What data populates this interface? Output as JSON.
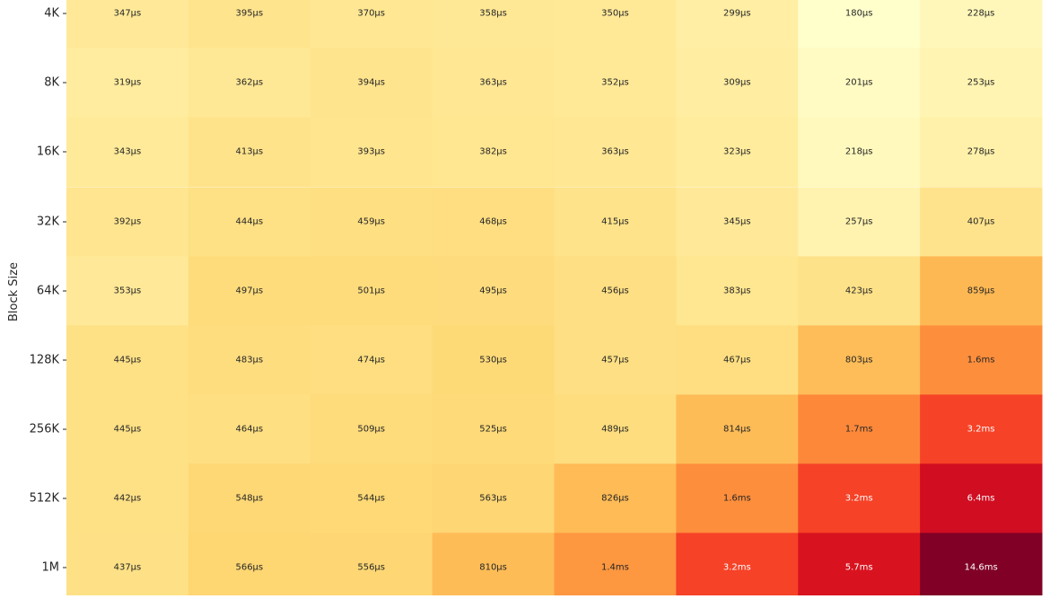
{
  "chart_data": {
    "type": "heatmap",
    "ylabel": "Block Size",
    "y_categories": [
      "4K",
      "8K",
      "16K",
      "32K",
      "64K",
      "128K",
      "256K",
      "512K",
      "1M"
    ],
    "columns": 8,
    "values_us": [
      [
        347,
        395,
        370,
        358,
        350,
        299,
        180,
        228
      ],
      [
        319,
        362,
        394,
        363,
        352,
        309,
        201,
        253
      ],
      [
        343,
        413,
        393,
        382,
        363,
        323,
        218,
        278
      ],
      [
        392,
        444,
        459,
        468,
        415,
        345,
        257,
        407
      ],
      [
        353,
        497,
        501,
        495,
        456,
        383,
        423,
        859
      ],
      [
        445,
        483,
        474,
        530,
        457,
        467,
        803,
        1600
      ],
      [
        445,
        464,
        509,
        525,
        489,
        814,
        1700,
        3200
      ],
      [
        442,
        548,
        544,
        563,
        826,
        1600,
        3200,
        6400
      ],
      [
        437,
        566,
        556,
        810,
        1400,
        3200,
        5700,
        14600
      ]
    ],
    "cell_labels": [
      [
        "347µs",
        "395µs",
        "370µs",
        "358µs",
        "350µs",
        "299µs",
        "180µs",
        "228µs"
      ],
      [
        "319µs",
        "362µs",
        "394µs",
        "363µs",
        "352µs",
        "309µs",
        "201µs",
        "253µs"
      ],
      [
        "343µs",
        "413µs",
        "393µs",
        "382µs",
        "363µs",
        "323µs",
        "218µs",
        "278µs"
      ],
      [
        "392µs",
        "444µs",
        "459µs",
        "468µs",
        "415µs",
        "345µs",
        "257µs",
        "407µs"
      ],
      [
        "353µs",
        "497µs",
        "501µs",
        "495µs",
        "456µs",
        "383µs",
        "423µs",
        "859µs"
      ],
      [
        "445µs",
        "483µs",
        "474µs",
        "530µs",
        "457µs",
        "467µs",
        "803µs",
        "1.6ms"
      ],
      [
        "445µs",
        "464µs",
        "509µs",
        "525µs",
        "489µs",
        "814µs",
        "1.7ms",
        "3.2ms"
      ],
      [
        "442µs",
        "548µs",
        "544µs",
        "563µs",
        "826µs",
        "1.6ms",
        "3.2ms",
        "6.4ms"
      ],
      [
        "437µs",
        "566µs",
        "556µs",
        "810µs",
        "1.4ms",
        "3.2ms",
        "5.7ms",
        "14.6ms"
      ]
    ],
    "color_scale": "log",
    "colormap": [
      "#ffffcc",
      "#ffeda0",
      "#fed976",
      "#feb24c",
      "#fd8d3c",
      "#fc4e2a",
      "#e31a1c",
      "#bd0026",
      "#800026"
    ],
    "colorbar": false,
    "grid": false
  }
}
